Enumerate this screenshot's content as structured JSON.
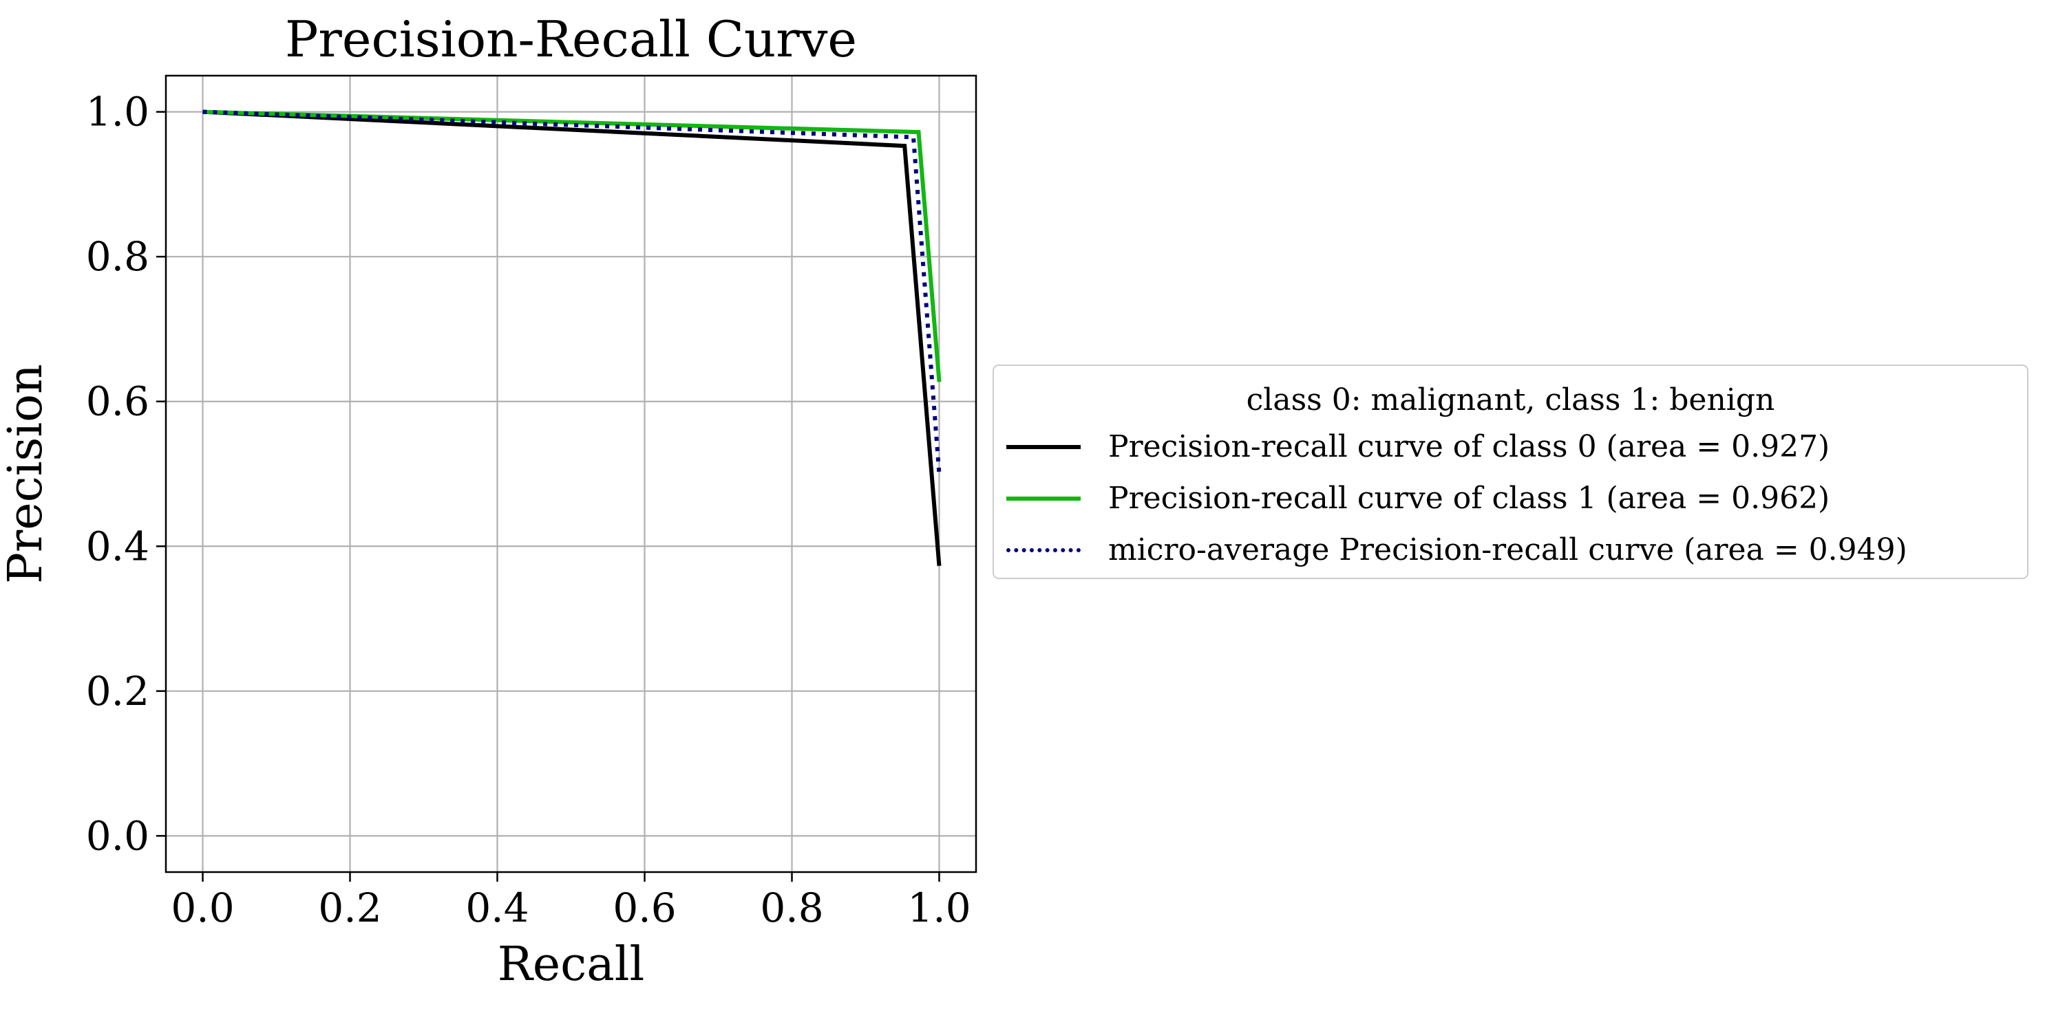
{
  "chart_data": {
    "type": "line",
    "title": "Precision-Recall Curve",
    "xlabel": "Recall",
    "ylabel": "Precision",
    "xlim": [
      -0.05,
      1.05
    ],
    "ylim": [
      -0.05,
      1.05
    ],
    "xticks": [
      "0.0",
      "0.2",
      "0.4",
      "0.6",
      "0.8",
      "1.0"
    ],
    "yticks": [
      "0.0",
      "0.2",
      "0.4",
      "0.6",
      "0.8",
      "1.0"
    ],
    "grid": true,
    "legend": {
      "title": "class 0: malignant, class 1: benign",
      "placement": "center-left outside right"
    },
    "series": [
      {
        "name": "Precision-recall curve of class 0 (area = 0.927)",
        "color": "#000000",
        "style": "solid",
        "x": [
          0.0,
          0.953,
          1.0
        ],
        "y": [
          1.0,
          0.953,
          0.373
        ]
      },
      {
        "name": "Precision-recall curve of class 1 (area = 0.962)",
        "color": "#12b712",
        "style": "solid",
        "x": [
          0.0,
          0.972,
          1.0
        ],
        "y": [
          1.0,
          0.972,
          0.627
        ]
      },
      {
        "name": "micro-average Precision-recall curve (area = 0.949)",
        "color": "#000080",
        "style": "dotted",
        "x": [
          0.0,
          0.965,
          1.0
        ],
        "y": [
          1.0,
          0.965,
          0.5
        ]
      }
    ]
  }
}
